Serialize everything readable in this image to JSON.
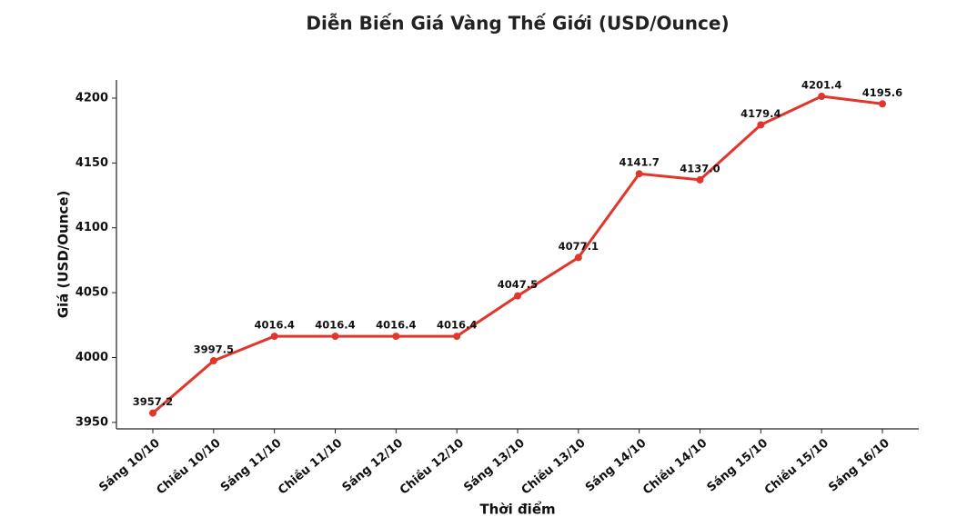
{
  "chart_data": {
    "type": "line",
    "title": "Diễn Biến Giá Vàng Thế Giới (USD/Ounce)",
    "x_label": "Thời điểm",
    "y_label": "Giá (USD/Ounce)",
    "categories": [
      "Sáng 10/10",
      "Chiều 10/10",
      "Sáng 11/10",
      "Chiều 11/10",
      "Sáng 12/10",
      "Chiều 12/10",
      "Sáng 13/10",
      "Chiều 13/10",
      "Sáng 14/10",
      "Chiều 14/10",
      "Sáng 15/10",
      "Chiều 15/10",
      "Sáng 16/10"
    ],
    "values": [
      3957.2,
      3997.5,
      4016.4,
      4016.4,
      4016.4,
      4016.4,
      4047.5,
      4077.1,
      4141.7,
      4137.0,
      4179.4,
      4201.4,
      4195.6
    ],
    "value_labels": [
      "3957.2",
      "3997.5",
      "4016.4",
      "4016.4",
      "4016.4",
      "4016.4",
      "4047.5",
      "4077.1",
      "4141.7",
      "4137.0",
      "4179.4",
      "4201.4",
      "4195.6"
    ],
    "color": "#e0362c",
    "ylim": [
      3945,
      4214
    ],
    "yticks": [
      3950,
      4000,
      4050,
      4100,
      4150,
      4200
    ],
    "grid": false
  }
}
